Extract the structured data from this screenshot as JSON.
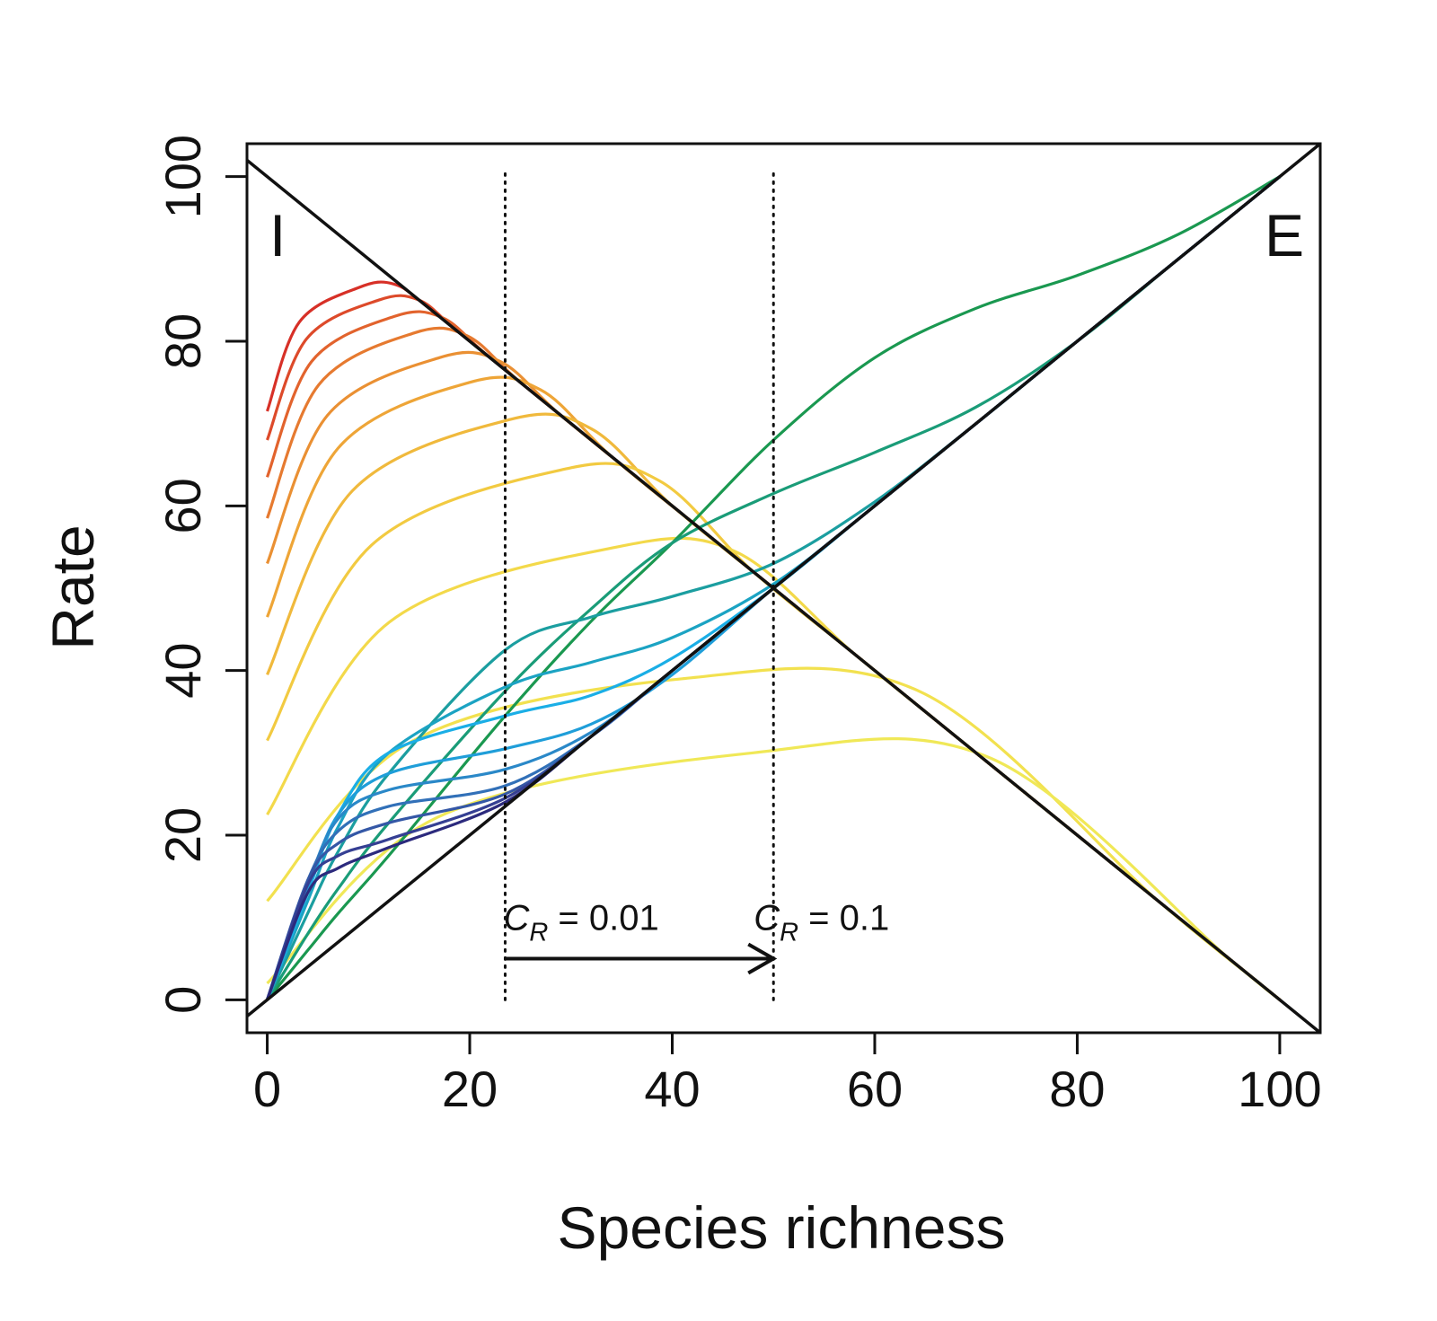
{
  "chart_data": {
    "type": "line",
    "xlabel": "Species richness",
    "ylabel": "Rate",
    "xlim": [
      -2,
      104
    ],
    "ylim": [
      -4,
      104
    ],
    "x_ticks": [
      "0",
      "20",
      "40",
      "60",
      "80",
      "100"
    ],
    "y_ticks": [
      "0",
      "20",
      "40",
      "60",
      "80",
      "100"
    ],
    "grid": false,
    "legend": "none",
    "corner_labels": {
      "immigration": "I",
      "extinction": "E"
    },
    "annotations": {
      "cr_low": {
        "var": "C",
        "sub": "R",
        "text": " = 0.01",
        "x": 23.5
      },
      "cr_high": {
        "var": "C",
        "sub": "R",
        "text": " = 0.1",
        "x": 50
      },
      "arrow": {
        "from_x": 23.5,
        "to_x": 50,
        "y": 5
      }
    },
    "reference_lines": [
      {
        "name": "immigration-reference",
        "color": "#111111",
        "points": [
          [
            -4,
            104
          ],
          [
            104,
            -4
          ]
        ]
      },
      {
        "name": "extinction-reference",
        "color": "#111111",
        "points": [
          [
            -4,
            -4
          ],
          [
            104,
            104
          ]
        ]
      }
    ],
    "immigration_curves": {
      "colors": [
        "#d73027",
        "#dd4a2a",
        "#e2632d",
        "#e67a30",
        "#ea9033",
        "#eea537",
        "#f0b93c",
        "#f2ca41",
        "#f3d94a",
        "#f2e14f",
        "#f0e857"
      ],
      "start_y": [
        71.5,
        68.0,
        63.5,
        58.5,
        53.0,
        46.5,
        39.5,
        31.5,
        22.5,
        12.0,
        2.0
      ],
      "peak_x": [
        9,
        11,
        12.5,
        14.5,
        17,
        20,
        24,
        29.5,
        34.5,
        41,
        48
      ],
      "peak_y": [
        86.5,
        85.0,
        83.0,
        81.0,
        78.0,
        75.0,
        70.5,
        64.5,
        55.0,
        39.0,
        30.0
      ],
      "merge_x": [
        16,
        19,
        22,
        25,
        29,
        34,
        40,
        48,
        58,
        88,
        95
      ]
    },
    "extinction_curves": {
      "colors": [
        "#1a9850",
        "#1a9c78",
        "#1b9ea0",
        "#1ba3c3",
        "#1aaee6",
        "#1f9ed9",
        "#2a88c8",
        "#3170b8",
        "#3457a6",
        "#353f93",
        "#2c2a7d"
      ],
      "knot_x": [
        0,
        4,
        7,
        12,
        23.5,
        32,
        40,
        50,
        60,
        70,
        80,
        90,
        100
      ],
      "knot_y": [
        [
          0,
          6,
          10.5,
          17.5,
          34.5,
          46,
          55.5,
          68,
          78,
          84,
          88,
          93,
          100
        ],
        [
          0,
          8,
          13.5,
          21.5,
          37.5,
          47.5,
          55.5,
          61.5,
          66.5,
          72,
          80,
          90,
          100
        ],
        [
          0,
          10.5,
          18,
          27.5,
          42.5,
          46.5,
          49,
          53,
          60.5,
          70,
          80,
          90,
          100
        ],
        [
          0,
          12,
          21,
          30,
          38,
          41,
          44,
          50.5,
          60,
          70,
          80,
          90,
          100
        ],
        [
          0,
          13,
          22.5,
          30,
          34.5,
          37,
          41.5,
          50,
          60,
          70,
          80,
          90,
          100
        ],
        [
          0,
          13.5,
          22.5,
          27.5,
          30.5,
          33.5,
          39.5,
          50,
          60,
          70,
          80,
          90,
          100
        ],
        [
          0,
          14,
          22,
          25.5,
          28,
          32.5,
          40,
          50,
          60,
          70,
          80,
          90,
          100
        ],
        [
          0,
          14.5,
          20.5,
          23.5,
          26,
          32,
          40,
          50,
          60,
          70,
          80,
          90,
          100
        ],
        [
          0,
          14.5,
          19,
          21.5,
          25,
          32,
          40,
          50,
          60,
          70,
          80,
          90,
          100
        ],
        [
          0,
          14,
          17.5,
          19.5,
          24.5,
          32,
          40,
          50,
          60,
          70,
          80,
          90,
          100
        ],
        [
          0,
          13,
          16,
          18.5,
          24,
          32,
          40,
          50,
          60,
          70,
          80,
          90,
          100
        ]
      ]
    },
    "vlines": [
      {
        "name": "cr-low-vline",
        "x": 23.5,
        "y": [
          0,
          101
        ]
      },
      {
        "name": "cr-high-vline",
        "x": 50,
        "y": [
          0,
          101
        ]
      }
    ]
  }
}
